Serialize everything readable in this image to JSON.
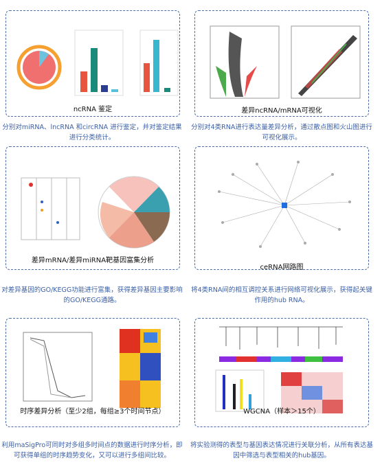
{
  "panels": [
    {
      "title": "ncRNA 鉴定",
      "description": "分别对miRNA、lncRNA 和circRNA 进行鉴定，并对鉴定结果进行分类统计。"
    },
    {
      "title": "差异ncRNA/mRNA可视化",
      "description": "分别对4类RNA进行表达量差异分析，通过散点图和火山图进行可视化展示。"
    },
    {
      "title": "差异mRNA/差异miRNA靶基因富集分析",
      "description": "对差异基因的GO/KEGG功能进行富集，获得差异基因主要影响的GO/KEGG通路。"
    },
    {
      "title": "ceRNA网路图",
      "description": "将4类RNA间的相互调控关系进行网络可视化展示，获得起关键作用的hub RNA。"
    },
    {
      "title": "时序差异分析（至少2组，每组≥3个时间节点）",
      "description": "利用maSigPro可同时对多组多时间点的数据进行时序分析，即可获得单组的时序趋势变化，又可以进行多组间比较。"
    },
    {
      "title": "WGCNA（样本＞15个）",
      "description": "将实验测得的表型与基因表达情况进行关联分析，从所有表达基因中筛选与表型相关的hub基因。"
    }
  ]
}
